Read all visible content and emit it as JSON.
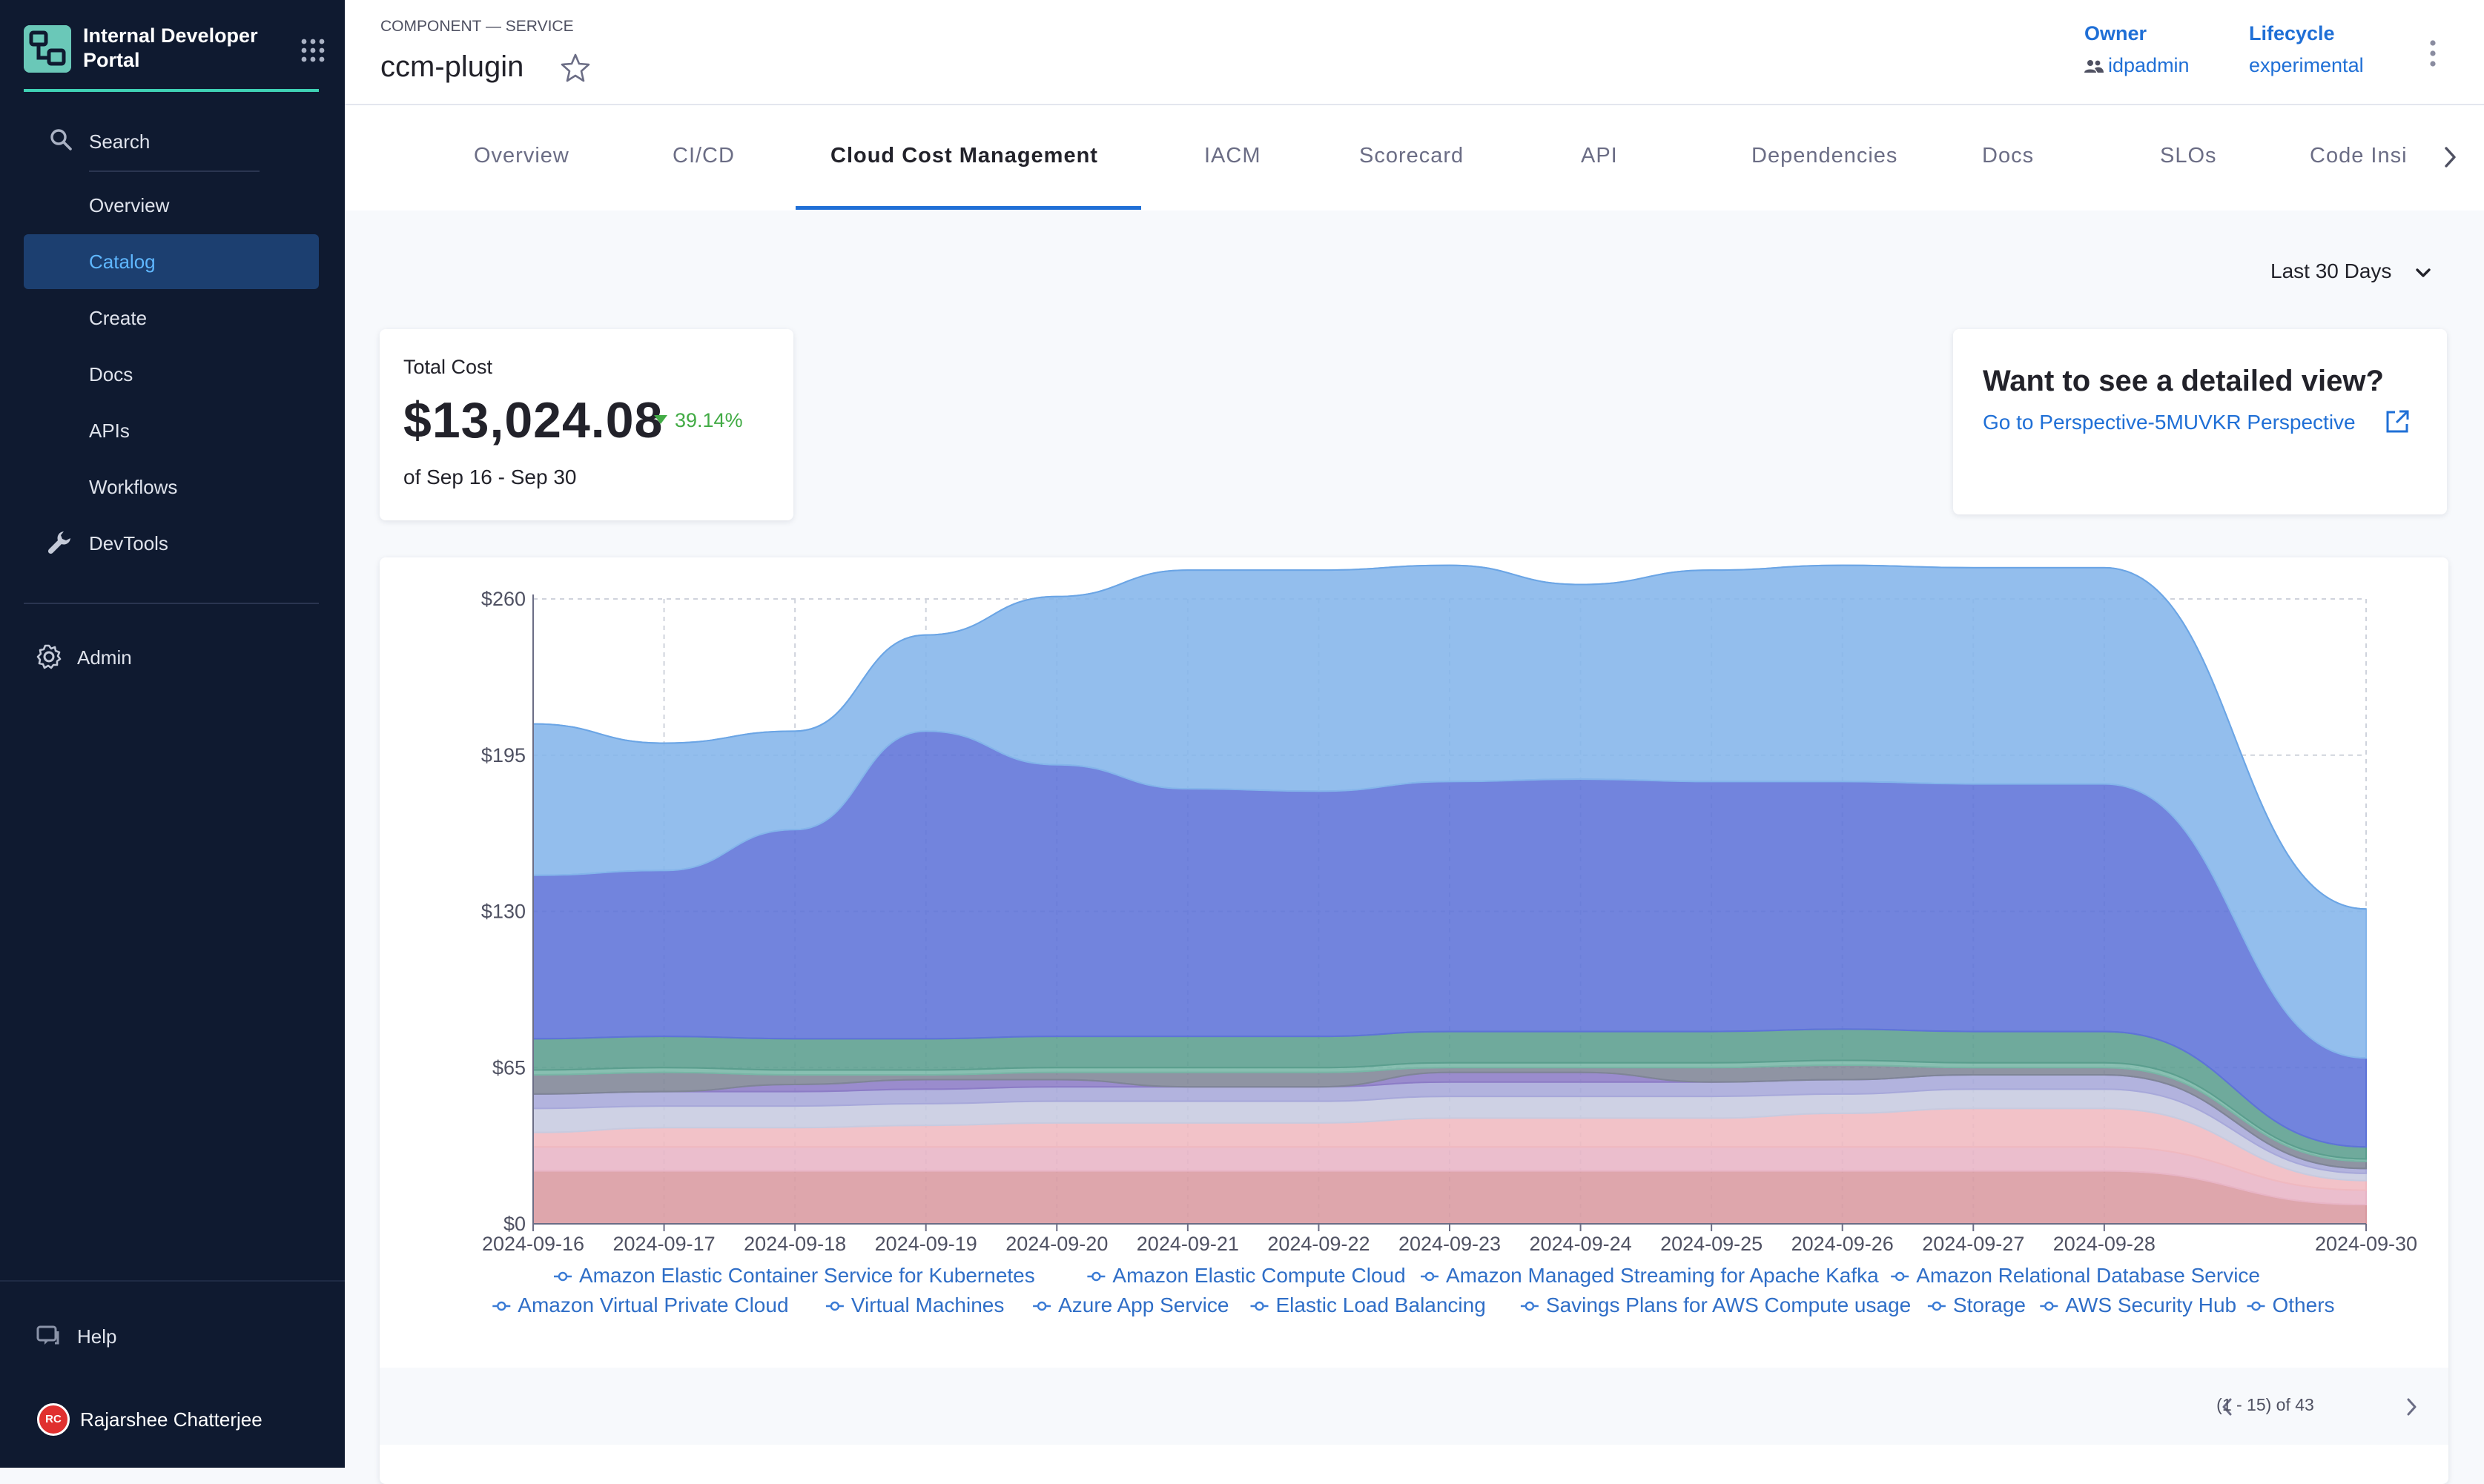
{
  "sidebar": {
    "brand": [
      "Internal Developer",
      "Portal"
    ],
    "search_label": "Search",
    "items": [
      {
        "label": "Overview"
      },
      {
        "label": "Catalog",
        "active": true
      },
      {
        "label": "Create"
      },
      {
        "label": "Docs"
      },
      {
        "label": "APIs"
      },
      {
        "label": "Workflows"
      }
    ],
    "devtools_label": "DevTools",
    "admin_label": "Admin",
    "help_label": "Help",
    "user": {
      "initials": "RC",
      "name": "Rajarshee Chatterjee"
    }
  },
  "header": {
    "kind": "COMPONENT — SERVICE",
    "title": "ccm-plugin",
    "owner_label": "Owner",
    "owner_value": "idpadmin",
    "lifecycle_label": "Lifecycle",
    "lifecycle_value": "experimental"
  },
  "tabs": [
    "Overview",
    "CI/CD",
    "Cloud Cost Management",
    "IACM",
    "Scorecard",
    "API",
    "Dependencies",
    "Docs",
    "SLOs",
    "Code Insi"
  ],
  "active_tab": "Cloud Cost Management",
  "time_range": "Last 30 Days",
  "cost_card": {
    "label": "Total Cost",
    "value": "$13,024.08",
    "delta": "39.14%",
    "range": "of Sep 16 - Sep 30"
  },
  "detail_card": {
    "title": "Want to see a detailed view?",
    "link": "Go to Perspective-5MUVKR Perspective"
  },
  "pagination": "(1 - 15) of 43",
  "colors": {
    "sidebar_bg": "#0f1a30",
    "active_nav": "#1c3f70",
    "accent_blue": "#1f6fd6",
    "brand_teal": "#3fd1b4",
    "delta_green": "#42ab45"
  },
  "chart_data": {
    "type": "area",
    "stacked": true,
    "x": [
      "2024-09-16",
      "2024-09-17",
      "2024-09-18",
      "2024-09-19",
      "2024-09-20",
      "2024-09-21",
      "2024-09-22",
      "2024-09-23",
      "2024-09-24",
      "2024-09-25",
      "2024-09-26",
      "2024-09-27",
      "2024-09-28",
      "2024-09-30"
    ],
    "ylim": [
      0,
      260
    ],
    "yticks": [
      "$0",
      "$65",
      "$130",
      "$195",
      "$260"
    ],
    "legend_position": "bottom",
    "grid": true,
    "series": [
      {
        "name": "Amazon Elastic Container Service for Kubernetes",
        "color": "#d99aa0",
        "values": [
          22,
          22,
          22,
          22,
          22,
          22,
          22,
          22,
          22,
          22,
          22,
          22,
          22,
          8
        ]
      },
      {
        "name": "Amazon Elastic Compute Cloud",
        "color": "#e8b5c6",
        "values": [
          10,
          10,
          10,
          10,
          10,
          10,
          10,
          10,
          10,
          10,
          10,
          10,
          10,
          6
        ]
      },
      {
        "name": "Amazon Managed Streaming for Apache Kafka",
        "color": "#f0b9c0",
        "values": [
          6,
          8,
          8,
          9,
          10,
          10,
          10,
          12,
          12,
          12,
          14,
          16,
          16,
          4
        ]
      },
      {
        "name": "Amazon Relational Database Service",
        "color": "#c7cbe0",
        "values": [
          10,
          9,
          9,
          9,
          9,
          9,
          9,
          9,
          9,
          9,
          8,
          8,
          8,
          3
        ]
      },
      {
        "name": "Amazon Virtual Private Cloud",
        "color": "#a7a8da",
        "values": [
          6,
          6,
          6,
          6,
          6,
          6,
          6,
          6,
          6,
          6,
          6,
          6,
          6,
          2
        ]
      },
      {
        "name": "Virtual Machines",
        "color": "#8c7cc6",
        "values": [
          0,
          0,
          3,
          4,
          3,
          0,
          0,
          4,
          4,
          0,
          0,
          0,
          0,
          0
        ]
      },
      {
        "name": "Azure App Service",
        "color": "#7f8596",
        "values": [
          8,
          8,
          4,
          2,
          3,
          6,
          6,
          2,
          2,
          6,
          6,
          3,
          3,
          3
        ]
      },
      {
        "name": "Elastic Load Balancing",
        "color": "#78b6a6",
        "values": [
          2,
          2,
          2,
          2,
          2,
          2,
          2,
          2,
          2,
          2,
          2,
          2,
          2,
          1
        ]
      },
      {
        "name": "Savings Plans for AWS Compute usage",
        "color": "#5b9e8e",
        "values": [
          13,
          13,
          13,
          13,
          13,
          13,
          13,
          13,
          13,
          13,
          13,
          13,
          13,
          5
        ]
      },
      {
        "name": "Storage",
        "color": "#5e73d8",
        "values": [
          68,
          69,
          87,
          128,
          113,
          103,
          102,
          104,
          105,
          104,
          103,
          103,
          103,
          37
        ]
      },
      {
        "name": "AWS Security Hub",
        "color": "#84b5ea",
        "values": [
          63,
          53,
          41,
          40,
          70,
          91,
          92,
          90,
          81,
          88,
          90,
          90,
          90,
          62
        ]
      },
      {
        "name": "Others",
        "color": "#6ba5e5",
        "values": [
          0,
          0,
          0,
          0,
          0,
          0,
          0,
          0,
          0,
          0,
          0,
          0,
          0,
          0
        ]
      }
    ]
  }
}
